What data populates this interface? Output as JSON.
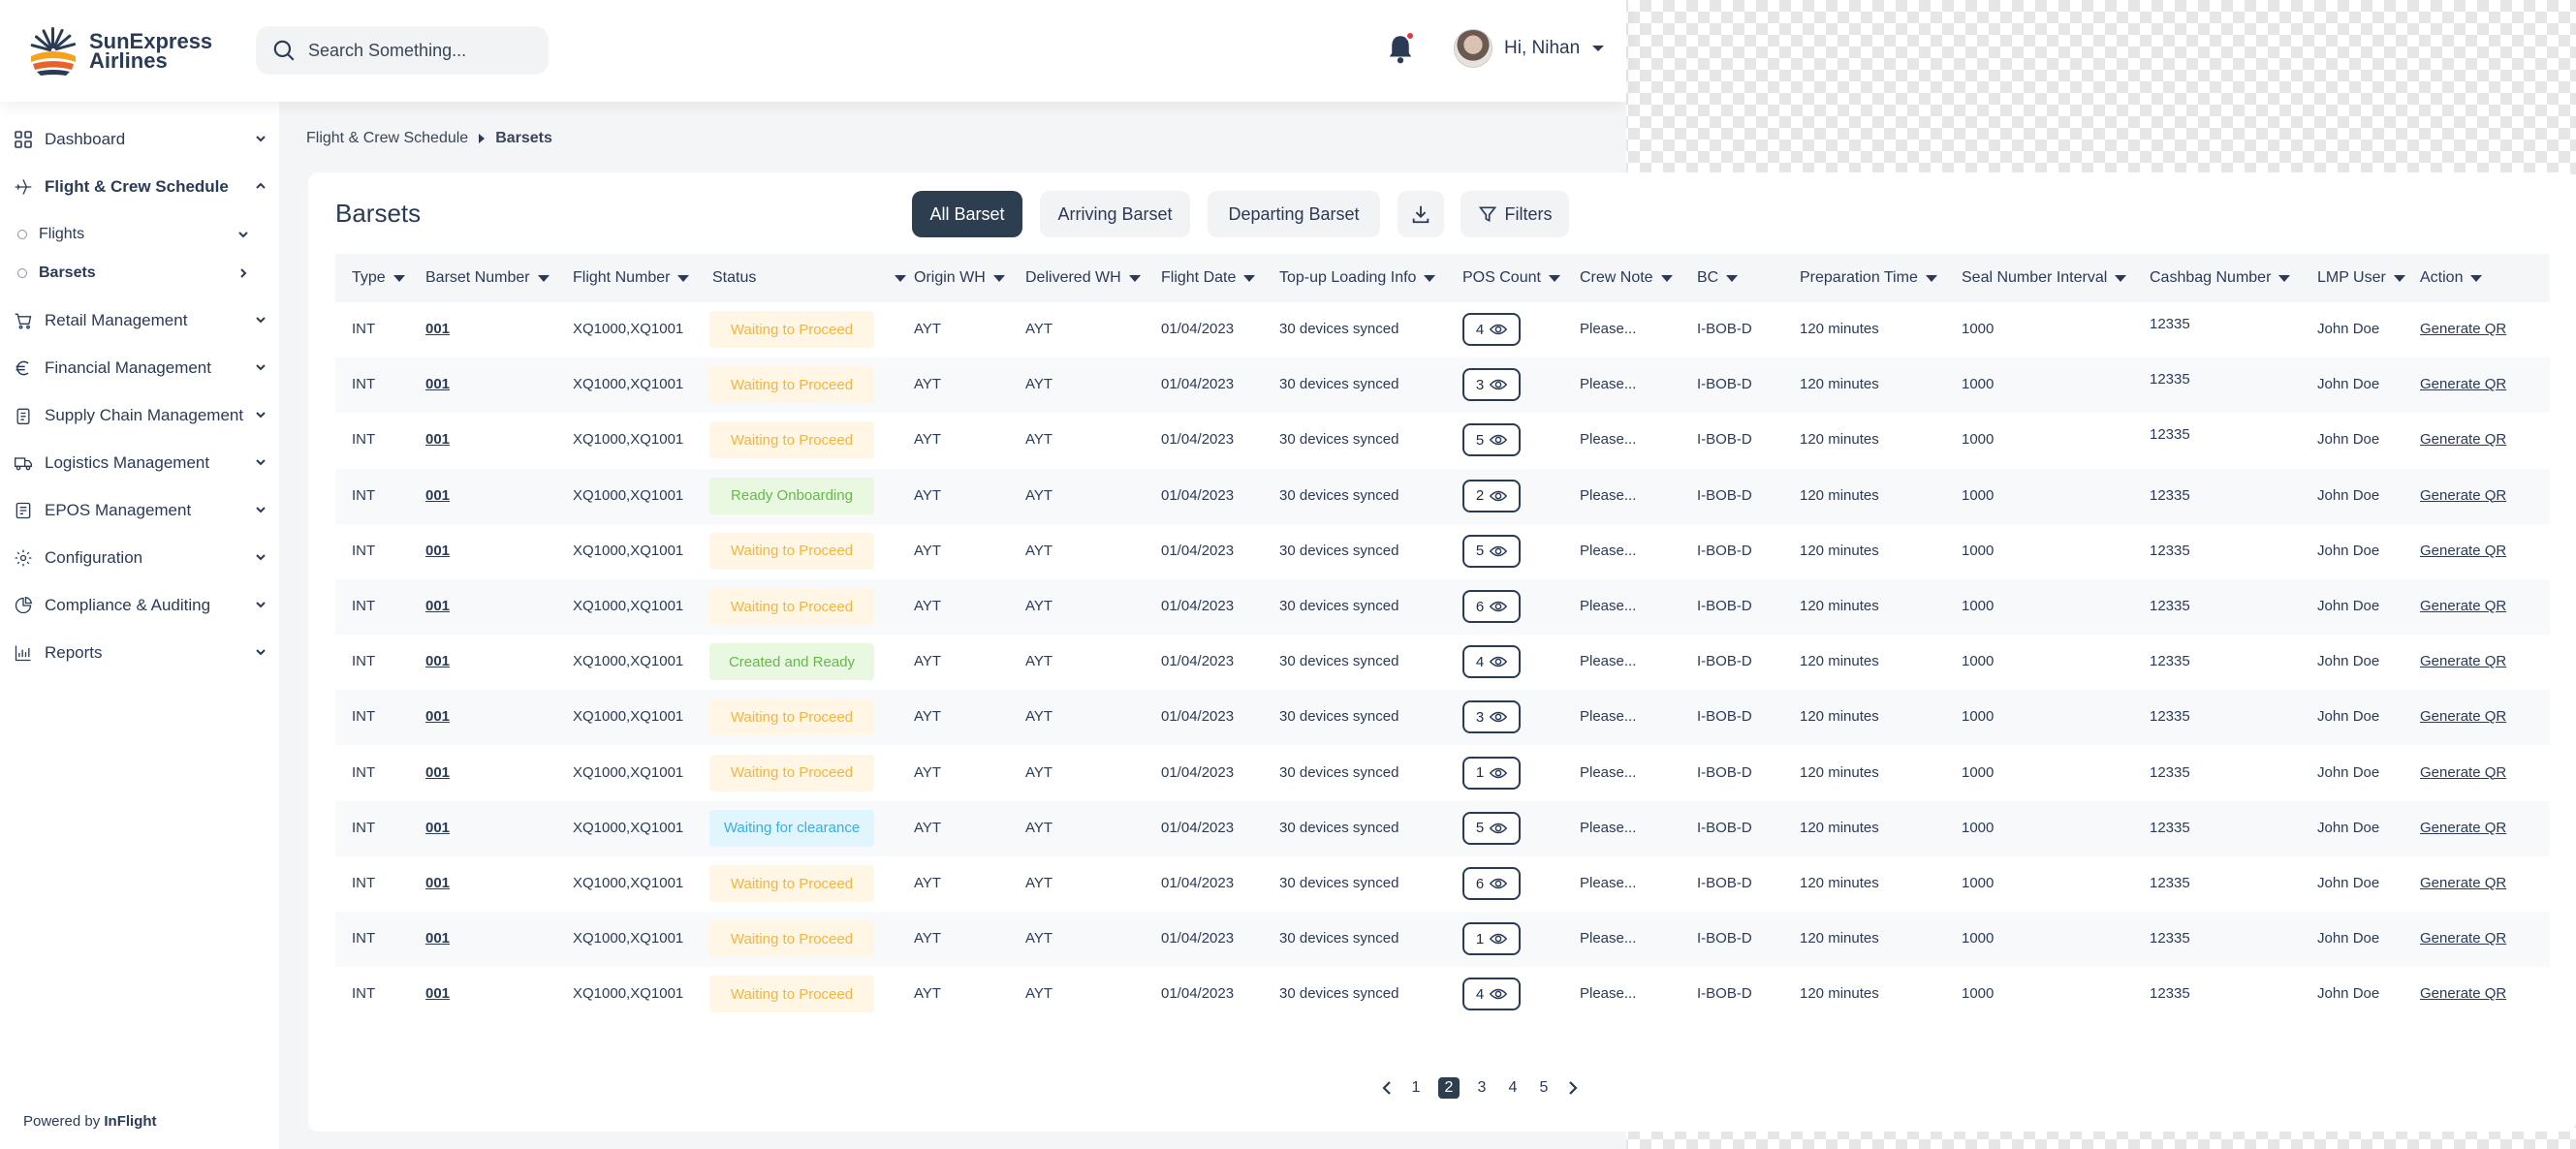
{
  "brand": {
    "name_line1": "SunExpress",
    "name_line2": "Airlines",
    "powered_prefix": "Powered by",
    "powered_name": "InFlight"
  },
  "header": {
    "search_placeholder": "Search Something...",
    "greeting": "Hi, Nihan"
  },
  "sidebar": {
    "items": [
      {
        "label": "Dashboard",
        "icon": "grid-icon"
      },
      {
        "label": "Flight & Crew Schedule",
        "icon": "plane-icon",
        "expanded": true
      },
      {
        "label": "Retail Management",
        "icon": "cart-icon"
      },
      {
        "label": "Financial Management",
        "icon": "euro-icon"
      },
      {
        "label": "Supply Chain Management",
        "icon": "clipboard-icon"
      },
      {
        "label": "Logistics Management",
        "icon": "truck-icon"
      },
      {
        "label": "EPOS Management",
        "icon": "receipt-icon"
      },
      {
        "label": "Configuration",
        "icon": "gear-icon"
      },
      {
        "label": "Compliance & Auditing",
        "icon": "chart-circle-icon"
      },
      {
        "label": "Reports",
        "icon": "bar-chart-icon"
      }
    ],
    "subitems": [
      {
        "label": "Flights"
      },
      {
        "label": "Barsets",
        "active": true
      }
    ]
  },
  "breadcrumb": {
    "parent": "Flight & Crew Schedule",
    "current": "Barsets"
  },
  "page": {
    "title": "Barsets"
  },
  "tabs": [
    "All Barset",
    "Arriving Barset",
    "Departing Barset"
  ],
  "toolbar": {
    "filters_label": "Filters"
  },
  "columns": [
    "Type",
    "Barset Number",
    "Flight Number",
    "Status",
    "Origin WH",
    "Delivered WH",
    "Flight Date",
    "Top-up Loading Info",
    "POS Count",
    "Crew Note",
    "BC",
    "Preparation Time",
    "Seal Number Interval",
    "Cashbag Number",
    "LMP User",
    "Action"
  ],
  "status_colors": {
    "Waiting to Proceed": {
      "bg": "#fff6e6",
      "fg": "#f3b53f"
    },
    "Ready Onboarding": {
      "bg": "#e8f8e1",
      "fg": "#67b84a"
    },
    "Created and Ready": {
      "bg": "#e8f8e1",
      "fg": "#67b84a"
    },
    "Waiting for clearance": {
      "bg": "#e1f5fd",
      "fg": "#3aaee0"
    }
  },
  "rows": [
    {
      "type": "INT",
      "barset": "001",
      "flight": "XQ1000,XQ1001",
      "status": "Waiting to Proceed",
      "origin": "AYT",
      "delivered": "AYT",
      "date": "01/04/2023",
      "topup": "30 devices synced",
      "pos": "4",
      "note": "Please...",
      "bc": "I-BOB-D",
      "prep": "120 minutes",
      "seal": "1000",
      "cashbag": "12335",
      "user": "John Doe",
      "action": "Generate QR"
    },
    {
      "type": "INT",
      "barset": "001",
      "flight": "XQ1000,XQ1001",
      "status": "Waiting to Proceed",
      "origin": "AYT",
      "delivered": "AYT",
      "date": "01/04/2023",
      "topup": "30 devices synced",
      "pos": "3",
      "note": "Please...",
      "bc": "I-BOB-D",
      "prep": "120 minutes",
      "seal": "1000",
      "cashbag": "12335",
      "user": "John Doe",
      "action": "Generate QR"
    },
    {
      "type": "INT",
      "barset": "001",
      "flight": "XQ1000,XQ1001",
      "status": "Waiting to Proceed",
      "origin": "AYT",
      "delivered": "AYT",
      "date": "01/04/2023",
      "topup": "30 devices synced",
      "pos": "5",
      "note": "Please...",
      "bc": "I-BOB-D",
      "prep": "120 minutes",
      "seal": "1000",
      "cashbag": "12335",
      "user": "John Doe",
      "action": "Generate QR"
    },
    {
      "type": "INT",
      "barset": "001",
      "flight": "XQ1000,XQ1001",
      "status": "Ready Onboarding",
      "origin": "AYT",
      "delivered": "AYT",
      "date": "01/04/2023",
      "topup": "30 devices synced",
      "pos": "2",
      "note": "Please...",
      "bc": "I-BOB-D",
      "prep": "120 minutes",
      "seal": "1000",
      "cashbag": "12335",
      "user": "John Doe",
      "action": "Generate QR"
    },
    {
      "type": "INT",
      "barset": "001",
      "flight": "XQ1000,XQ1001",
      "status": "Waiting to Proceed",
      "origin": "AYT",
      "delivered": "AYT",
      "date": "01/04/2023",
      "topup": "30 devices synced",
      "pos": "5",
      "note": "Please...",
      "bc": "I-BOB-D",
      "prep": "120 minutes",
      "seal": "1000",
      "cashbag": "12335",
      "user": "John Doe",
      "action": "Generate QR"
    },
    {
      "type": "INT",
      "barset": "001",
      "flight": "XQ1000,XQ1001",
      "status": "Waiting to Proceed",
      "origin": "AYT",
      "delivered": "AYT",
      "date": "01/04/2023",
      "topup": "30 devices synced",
      "pos": "6",
      "note": "Please...",
      "bc": "I-BOB-D",
      "prep": "120 minutes",
      "seal": "1000",
      "cashbag": "12335",
      "user": "John Doe",
      "action": "Generate QR"
    },
    {
      "type": "INT",
      "barset": "001",
      "flight": "XQ1000,XQ1001",
      "status": "Created and Ready",
      "origin": "AYT",
      "delivered": "AYT",
      "date": "01/04/2023",
      "topup": "30 devices synced",
      "pos": "4",
      "note": "Please...",
      "bc": "I-BOB-D",
      "prep": "120 minutes",
      "seal": "1000",
      "cashbag": "12335",
      "user": "John Doe",
      "action": "Generate QR"
    },
    {
      "type": "INT",
      "barset": "001",
      "flight": "XQ1000,XQ1001",
      "status": "Waiting to Proceed",
      "origin": "AYT",
      "delivered": "AYT",
      "date": "01/04/2023",
      "topup": "30 devices synced",
      "pos": "3",
      "note": "Please...",
      "bc": "I-BOB-D",
      "prep": "120 minutes",
      "seal": "1000",
      "cashbag": "12335",
      "user": "John Doe",
      "action": "Generate QR"
    },
    {
      "type": "INT",
      "barset": "001",
      "flight": "XQ1000,XQ1001",
      "status": "Waiting to Proceed",
      "origin": "AYT",
      "delivered": "AYT",
      "date": "01/04/2023",
      "topup": "30 devices synced",
      "pos": "1",
      "note": "Please...",
      "bc": "I-BOB-D",
      "prep": "120 minutes",
      "seal": "1000",
      "cashbag": "12335",
      "user": "John Doe",
      "action": "Generate QR"
    },
    {
      "type": "INT",
      "barset": "001",
      "flight": "XQ1000,XQ1001",
      "status": "Waiting for clearance",
      "origin": "AYT",
      "delivered": "AYT",
      "date": "01/04/2023",
      "topup": "30 devices synced",
      "pos": "5",
      "note": "Please...",
      "bc": "I-BOB-D",
      "prep": "120 minutes",
      "seal": "1000",
      "cashbag": "12335",
      "user": "John Doe",
      "action": "Generate QR"
    },
    {
      "type": "INT",
      "barset": "001",
      "flight": "XQ1000,XQ1001",
      "status": "Waiting to Proceed",
      "origin": "AYT",
      "delivered": "AYT",
      "date": "01/04/2023",
      "topup": "30 devices synced",
      "pos": "6",
      "note": "Please...",
      "bc": "I-BOB-D",
      "prep": "120 minutes",
      "seal": "1000",
      "cashbag": "12335",
      "user": "John Doe",
      "action": "Generate QR"
    },
    {
      "type": "INT",
      "barset": "001",
      "flight": "XQ1000,XQ1001",
      "status": "Waiting to Proceed",
      "origin": "AYT",
      "delivered": "AYT",
      "date": "01/04/2023",
      "topup": "30 devices synced",
      "pos": "1",
      "note": "Please...",
      "bc": "I-BOB-D",
      "prep": "120 minutes",
      "seal": "1000",
      "cashbag": "12335",
      "user": "John Doe",
      "action": "Generate QR"
    },
    {
      "type": "INT",
      "barset": "001",
      "flight": "XQ1000,XQ1001",
      "status": "Waiting to Proceed",
      "origin": "AYT",
      "delivered": "AYT",
      "date": "01/04/2023",
      "topup": "30 devices synced",
      "pos": "4",
      "note": "Please...",
      "bc": "I-BOB-D",
      "prep": "120 minutes",
      "seal": "1000",
      "cashbag": "12335",
      "user": "John Doe",
      "action": "Generate QR"
    }
  ],
  "pagination": {
    "pages": [
      "1",
      "2",
      "3",
      "4",
      "5"
    ],
    "current": "2"
  }
}
